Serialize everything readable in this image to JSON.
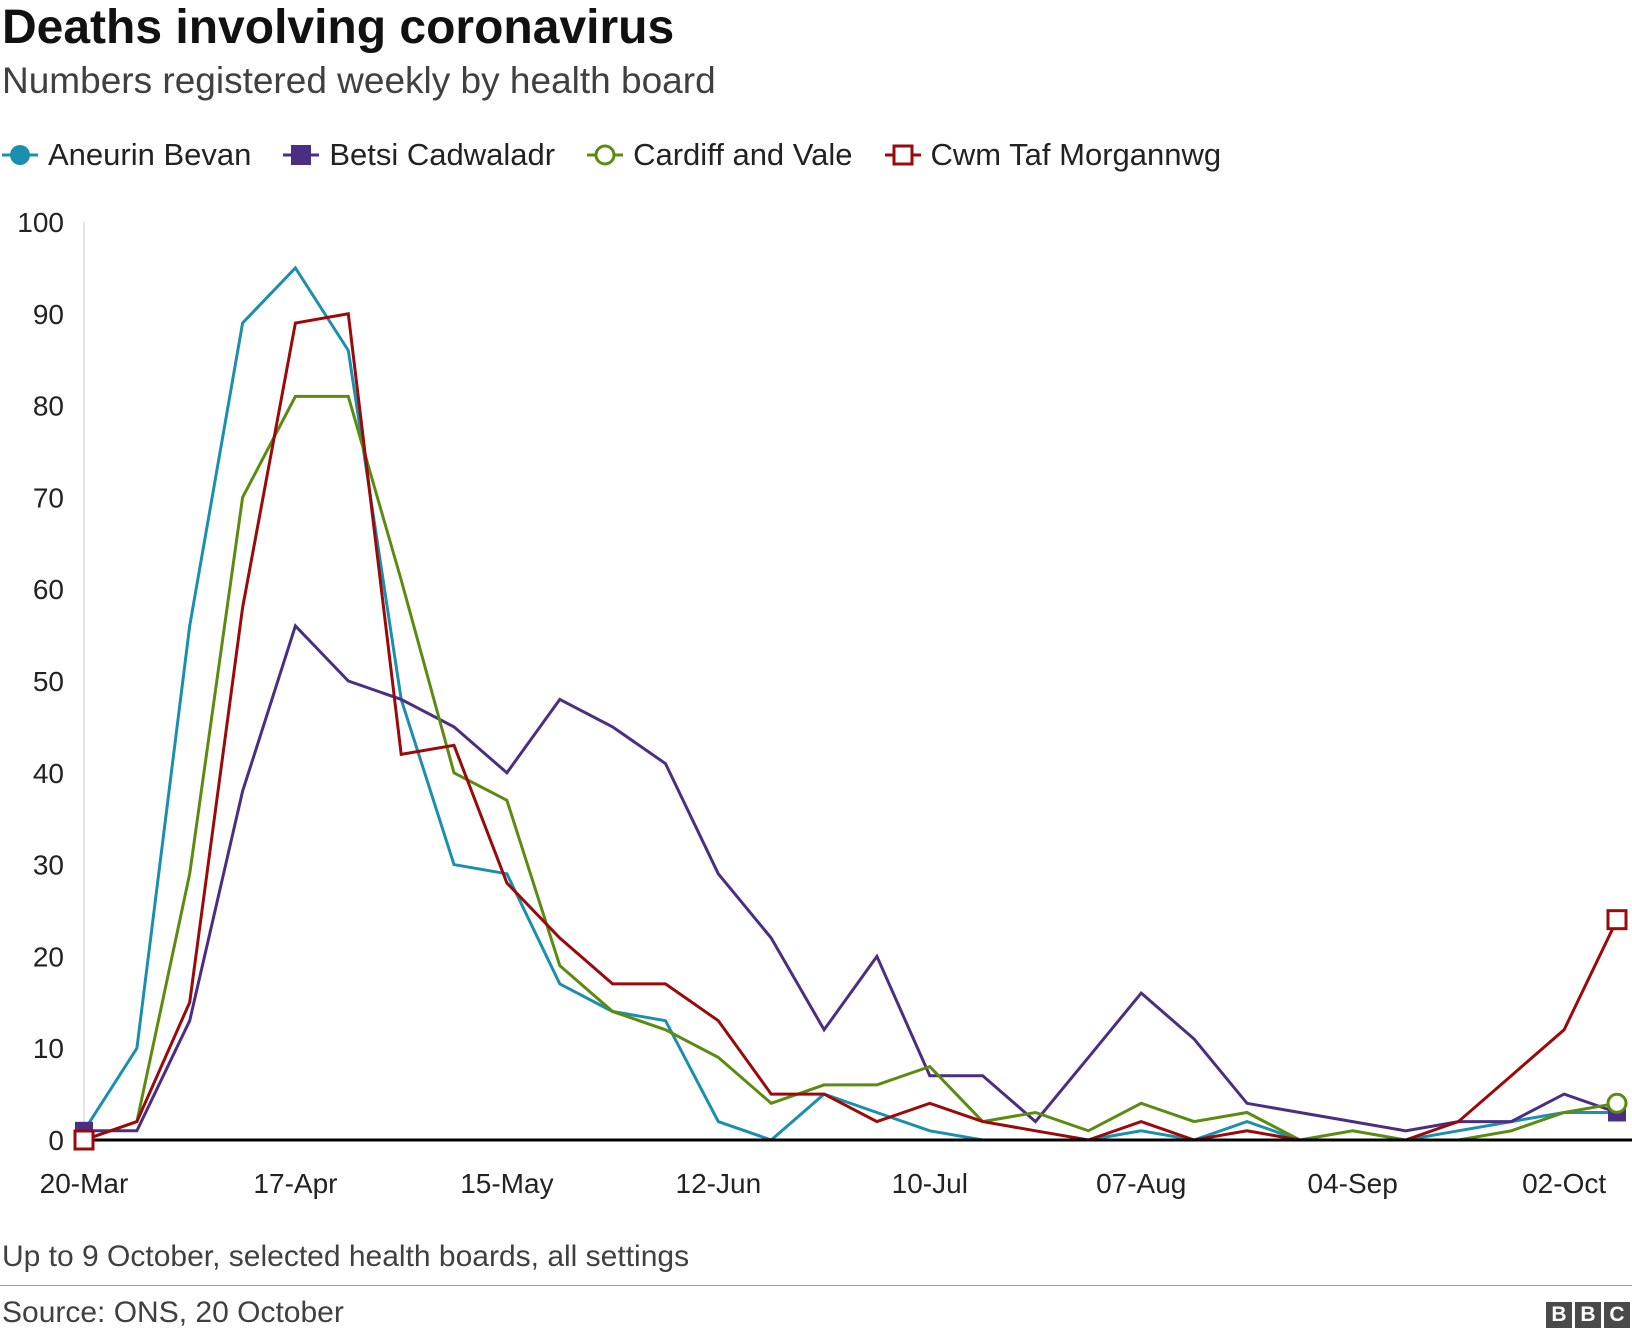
{
  "title": "Deaths involving coronavirus",
  "subtitle": "Numbers registered weekly by health board",
  "note": "Up to 9 October, selected health boards, all settings",
  "source": "Source: ONS, 20 October",
  "logo": [
    "B",
    "B",
    "C"
  ],
  "chart_data": {
    "type": "line",
    "title": "Deaths involving coronavirus",
    "xlabel": "",
    "ylabel": "",
    "ylim": [
      0,
      100
    ],
    "yticks": [
      0,
      10,
      20,
      30,
      40,
      50,
      60,
      70,
      80,
      90,
      100
    ],
    "x_tick_labels": [
      "20-Mar",
      "17-Apr",
      "15-May",
      "12-Jun",
      "10-Jul",
      "07-Aug",
      "04-Sep",
      "02-Oct"
    ],
    "x_tick_indices": [
      0,
      4,
      8,
      12,
      16,
      20,
      24,
      28
    ],
    "week_count": 30,
    "series": [
      {
        "name": "Aneurin Bevan",
        "color": "#1a8fae",
        "marker": "filled-circle",
        "values": [
          1,
          10,
          56,
          89,
          95,
          86,
          48,
          30,
          29,
          17,
          14,
          13,
          2,
          0,
          5,
          3,
          1,
          0,
          0,
          0,
          1,
          0,
          2,
          0,
          0,
          0,
          1,
          2,
          3,
          3
        ]
      },
      {
        "name": "Betsi Cadwaladr",
        "color": "#4b2e83",
        "marker": "filled-square",
        "values": [
          1,
          1,
          13,
          38,
          56,
          50,
          48,
          45,
          40,
          48,
          45,
          41,
          29,
          22,
          12,
          20,
          7,
          7,
          2,
          9,
          16,
          11,
          4,
          3,
          2,
          1,
          2,
          2,
          5,
          3
        ]
      },
      {
        "name": "Cardiff and Vale",
        "color": "#5b8c11",
        "marker": "hollow-circle",
        "values": [
          0,
          2,
          29,
          70,
          81,
          81,
          61,
          40,
          37,
          19,
          14,
          12,
          9,
          4,
          6,
          6,
          8,
          2,
          3,
          1,
          4,
          2,
          3,
          0,
          1,
          0,
          0,
          1,
          3,
          4
        ]
      },
      {
        "name": "Cwm Taf Morgannwg",
        "color": "#9b0a0a",
        "marker": "hollow-square",
        "values": [
          0,
          2,
          15,
          58,
          89,
          90,
          42,
          43,
          28,
          22,
          17,
          17,
          13,
          5,
          5,
          2,
          4,
          2,
          1,
          0,
          2,
          0,
          1,
          0,
          0,
          0,
          2,
          7,
          12,
          24
        ]
      }
    ],
    "legend_position": "top-left",
    "grid": false
  }
}
